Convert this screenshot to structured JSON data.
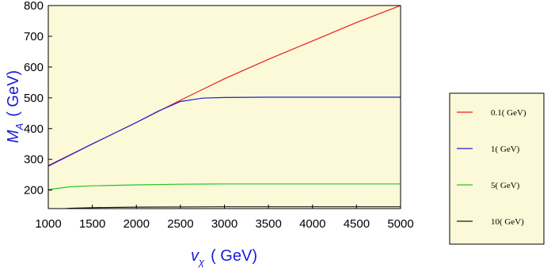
{
  "chart_data": {
    "type": "line",
    "xlabel": {
      "symbol": "v",
      "sub": "χ",
      "unit": "( GeV)"
    },
    "ylabel": {
      "symbol": "M",
      "sub": "A",
      "unit": "( GeV)"
    },
    "xlim": [
      1000,
      5000
    ],
    "ylim": [
      140,
      800
    ],
    "xticks": [
      "1000",
      "1500",
      "2000",
      "2500",
      "3000",
      "3500",
      "4000",
      "4500",
      "5000"
    ],
    "yticks": [
      "200",
      "300",
      "400",
      "500",
      "600",
      "700",
      "800"
    ],
    "background": "#fbf9d8",
    "grid": false,
    "legend_position": "right",
    "series": [
      {
        "name": "0.1( GeV)",
        "color": "#ee1c1c",
        "x": [
          1000,
          1500,
          2000,
          2500,
          3000,
          3500,
          4000,
          4500,
          5000
        ],
        "y": [
          280,
          350,
          420,
          492,
          562,
          625,
          685,
          745,
          800
        ]
      },
      {
        "name": "1( GeV)",
        "color": "#2020d0",
        "x": [
          1000,
          1500,
          2000,
          2250,
          2500,
          2750,
          3000,
          3500,
          4000,
          4500,
          5000
        ],
        "y": [
          278,
          350,
          420,
          457,
          488,
          499,
          501,
          502,
          502,
          502,
          502
        ]
      },
      {
        "name": "5( GeV)",
        "color": "#22c822",
        "x": [
          1000,
          1250,
          1500,
          2000,
          2500,
          3000,
          4000,
          5000
        ],
        "y": [
          202,
          211,
          214,
          217,
          219,
          220,
          220,
          220
        ]
      },
      {
        "name": "10( GeV)",
        "color": "#1a1a1a",
        "x": [
          1000,
          1250,
          1500,
          2000,
          3000,
          4000,
          5000
        ],
        "y": [
          136,
          141,
          143,
          145,
          146,
          146,
          146
        ]
      }
    ]
  }
}
